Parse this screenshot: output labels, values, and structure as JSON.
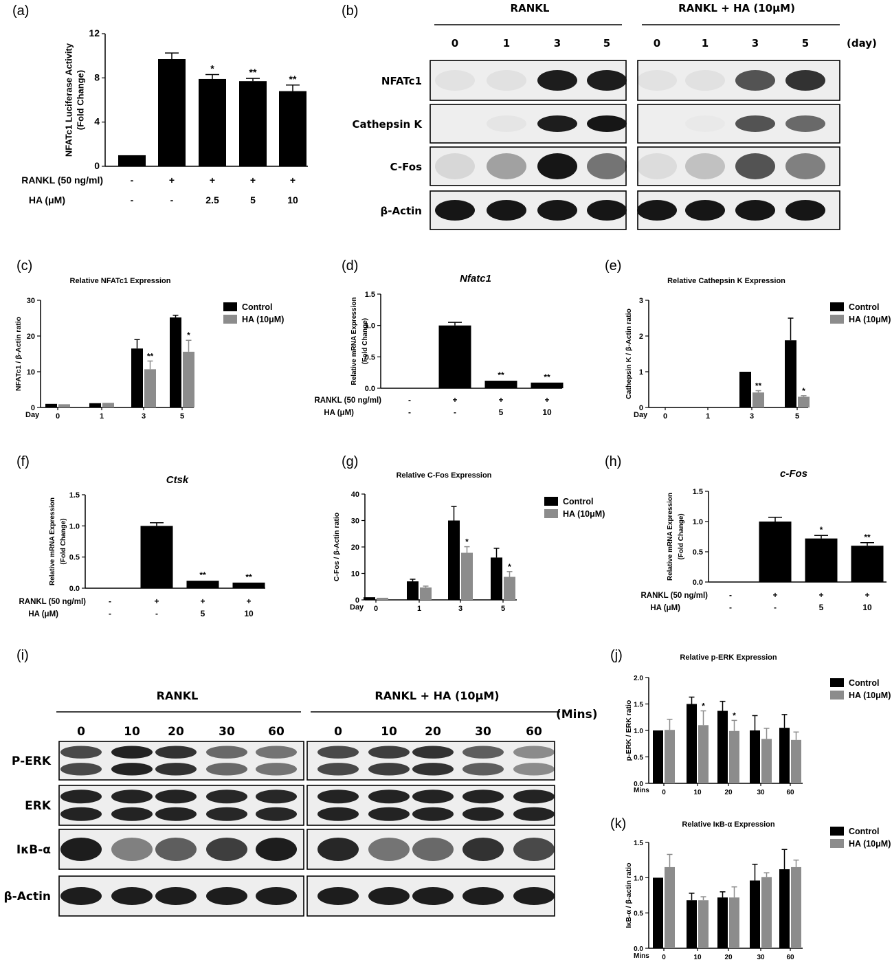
{
  "panel_labels": {
    "a": "(a)",
    "b": "(b)",
    "c": "(c)",
    "d": "(d)",
    "e": "(e)",
    "f": "(f)",
    "g": "(g)",
    "h": "(h)",
    "i": "(i)",
    "j": "(j)",
    "k": "(k)"
  },
  "legend": {
    "control": "Control",
    "ha": "HA (10μM)"
  },
  "colors": {
    "control": "#000000",
    "ha": "#8c8c8c",
    "blot_bg": "#eeeeee",
    "band": "#111111"
  },
  "blot_b": {
    "group1": "RANKL",
    "group2": "RANKL + HA (10μM)",
    "lanes": [
      "0",
      "1",
      "3",
      "5",
      "0",
      "1",
      "3",
      "5"
    ],
    "unit": "(day)",
    "rows": [
      "NFATc1",
      "Cathepsin K",
      "C-Fos",
      "β-Actin"
    ],
    "intensity": [
      [
        0.05,
        0.06,
        0.95,
        0.95,
        0.05,
        0.06,
        0.7,
        0.85
      ],
      [
        0.0,
        0.04,
        0.95,
        0.98,
        0.0,
        0.02,
        0.7,
        0.6
      ],
      [
        0.1,
        0.35,
        0.98,
        0.55,
        0.08,
        0.2,
        0.7,
        0.5
      ],
      [
        0.98,
        0.98,
        0.98,
        0.98,
        0.98,
        0.98,
        0.98,
        0.98
      ]
    ]
  },
  "blot_i": {
    "group1": "RANKL",
    "group2": "RANKL + HA (10μM)",
    "lanes": [
      "0",
      "10",
      "20",
      "30",
      "60",
      "0",
      "10",
      "20",
      "30",
      "60"
    ],
    "unit": "(Mins)",
    "rows": [
      "P-ERK",
      "ERK",
      "IκB-α",
      "β-Actin"
    ],
    "intensity": [
      [
        0.75,
        0.92,
        0.85,
        0.6,
        0.55,
        0.75,
        0.8,
        0.85,
        0.65,
        0.45
      ],
      [
        0.92,
        0.92,
        0.92,
        0.9,
        0.9,
        0.92,
        0.92,
        0.92,
        0.92,
        0.92
      ],
      [
        0.95,
        0.5,
        0.65,
        0.8,
        0.95,
        0.9,
        0.55,
        0.6,
        0.85,
        0.75
      ],
      [
        0.95,
        0.95,
        0.95,
        0.95,
        0.95,
        0.95,
        0.95,
        0.95,
        0.95,
        0.95
      ]
    ]
  },
  "chart_data": [
    {
      "id": "a",
      "type": "bar",
      "ylabel": "NFATc1 Luciferase Activity\n(Fold Change)",
      "ylim": [
        0,
        12
      ],
      "yticks": [
        0,
        4,
        8,
        12
      ],
      "values": [
        1.0,
        9.7,
        7.9,
        7.7,
        6.8
      ],
      "errors": [
        0,
        0.55,
        0.4,
        0.25,
        0.55
      ],
      "stars": [
        "",
        "",
        "*",
        "**",
        "**"
      ],
      "cond_rows": [
        {
          "label": "RANKL (50 ng/ml)",
          "values": [
            "-",
            "+",
            "+",
            "+",
            "+"
          ]
        },
        {
          "label": "HA (μM)",
          "values": [
            "-",
            "-",
            "2.5",
            "5",
            "10"
          ]
        }
      ]
    },
    {
      "id": "c",
      "type": "bar",
      "title": "Relative NFATc1 Expression",
      "ylabel": "NFATc1 / β-Actin ratio",
      "ylim": [
        0,
        30
      ],
      "yticks": [
        0,
        10,
        20,
        30
      ],
      "xlabel": "Day",
      "categories": [
        "0",
        "1",
        "3",
        "5"
      ],
      "series": [
        {
          "name": "Control",
          "values": [
            1.0,
            1.2,
            16.5,
            25.2
          ],
          "errors": [
            0,
            0,
            2.5,
            0.6
          ]
        },
        {
          "name": "HA (10μM)",
          "values": [
            0.9,
            1.3,
            10.7,
            15.6
          ],
          "errors": [
            0,
            0,
            2.3,
            3.2
          ]
        }
      ],
      "stars": [
        [
          "",
          ""
        ],
        [
          "",
          ""
        ],
        [
          "",
          "**"
        ],
        [
          "",
          "*"
        ]
      ]
    },
    {
      "id": "d",
      "type": "bar",
      "title": "Nfatc1",
      "ylabel": "Relative mRNA Expression\n(Fold Change)",
      "ylim": [
        0,
        1.5
      ],
      "yticks": [
        "0.0",
        "0.5",
        "1.0",
        "1.5"
      ],
      "values": [
        0.0,
        1.0,
        0.12,
        0.09
      ],
      "errors": [
        0,
        0.05,
        0.0,
        0.0
      ],
      "stars": [
        "",
        "",
        "**",
        "**"
      ],
      "cond_rows": [
        {
          "label": "RANKL (50 ng/ml)",
          "values": [
            "-",
            "+",
            "+",
            "+"
          ]
        },
        {
          "label": "HA (μM)",
          "values": [
            "-",
            "-",
            "5",
            "10"
          ]
        }
      ]
    },
    {
      "id": "e",
      "type": "bar",
      "title": "Relative Cathepsin K Expression",
      "ylabel": "Cathepsin K / β-Actin ratio",
      "ylim": [
        0,
        3
      ],
      "yticks": [
        0,
        1,
        2,
        3
      ],
      "xlabel": "Day",
      "categories": [
        "0",
        "1",
        "3",
        "5"
      ],
      "series": [
        {
          "name": "Control",
          "values": [
            0,
            0,
            1.0,
            1.88
          ],
          "errors": [
            0,
            0,
            0,
            0.62
          ]
        },
        {
          "name": "HA (10μM)",
          "values": [
            0,
            0,
            0.42,
            0.3
          ],
          "errors": [
            0,
            0,
            0.05,
            0.03
          ]
        }
      ],
      "stars": [
        [
          "",
          ""
        ],
        [
          "",
          ""
        ],
        [
          "",
          "**"
        ],
        [
          "",
          "*"
        ]
      ]
    },
    {
      "id": "f",
      "type": "bar",
      "title": "Ctsk",
      "ylabel": "Relative mRNA Expression\n(Fold Change)",
      "ylim": [
        0,
        1.5
      ],
      "yticks": [
        "0.0",
        "0.5",
        "1.0",
        "1.5"
      ],
      "values": [
        0.0,
        1.0,
        0.12,
        0.09
      ],
      "errors": [
        0,
        0.05,
        0.0,
        0.0
      ],
      "stars": [
        "",
        "",
        "**",
        "**"
      ],
      "cond_rows": [
        {
          "label": "RANKL (50 ng/ml)",
          "values": [
            "-",
            "+",
            "+",
            "+"
          ]
        },
        {
          "label": "HA (μM)",
          "values": [
            "-",
            "-",
            "5",
            "10"
          ]
        }
      ]
    },
    {
      "id": "g",
      "type": "bar",
      "title": "Relative C-Fos Expression",
      "ylabel": "C-Fos / β-Actin ratio",
      "ylim": [
        0,
        40
      ],
      "yticks": [
        0,
        10,
        20,
        30,
        40
      ],
      "xlabel": "Day",
      "categories": [
        "0",
        "1",
        "3",
        "5"
      ],
      "series": [
        {
          "name": "Control",
          "values": [
            1.0,
            7.0,
            30.0,
            16.0
          ],
          "errors": [
            0,
            0.8,
            5.3,
            3.5
          ]
        },
        {
          "name": "HA (10μM)",
          "values": [
            0.8,
            4.7,
            17.8,
            8.7
          ],
          "errors": [
            0,
            0.5,
            2.3,
            2.0
          ]
        }
      ],
      "stars": [
        [
          "",
          ""
        ],
        [
          "",
          ""
        ],
        [
          "",
          "*"
        ],
        [
          "",
          "*"
        ]
      ]
    },
    {
      "id": "h",
      "type": "bar",
      "title": "c-Fos",
      "ylabel": "Relative mRNA Expression\n(Fold Change)",
      "ylim": [
        0,
        1.5
      ],
      "yticks": [
        "0.0",
        "0.5",
        "1.0",
        "1.5"
      ],
      "values": [
        0.0,
        1.0,
        0.72,
        0.6
      ],
      "errors": [
        0,
        0.07,
        0.05,
        0.05
      ],
      "stars": [
        "",
        "",
        "*",
        "**"
      ],
      "cond_rows": [
        {
          "label": "RANKL (50 ng/ml)",
          "values": [
            "-",
            "+",
            "+",
            "+"
          ]
        },
        {
          "label": "HA (μM)",
          "values": [
            "-",
            "-",
            "5",
            "10"
          ]
        }
      ]
    },
    {
      "id": "j",
      "type": "bar",
      "title": "Relative p-ERK Expression",
      "ylabel": "p-ERK / ERK ratio",
      "ylim": [
        0,
        2
      ],
      "yticks": [
        "0.0",
        "0.5",
        "1.0",
        "1.5",
        "2.0"
      ],
      "xlabel": "Mins",
      "categories": [
        "0",
        "10",
        "20",
        "30",
        "60"
      ],
      "series": [
        {
          "name": "Control",
          "values": [
            1.0,
            1.5,
            1.37,
            1.0,
            1.05
          ],
          "errors": [
            0,
            0.13,
            0.18,
            0.28,
            0.25
          ]
        },
        {
          "name": "HA (10μM)",
          "values": [
            1.01,
            1.1,
            0.99,
            0.84,
            0.82
          ],
          "errors": [
            0.2,
            0.27,
            0.2,
            0.2,
            0.15
          ]
        }
      ],
      "stars": [
        [
          "",
          ""
        ],
        [
          "",
          "*"
        ],
        [
          "",
          "*"
        ],
        [
          "",
          ""
        ],
        [
          "",
          ""
        ]
      ]
    },
    {
      "id": "k",
      "type": "bar",
      "title": "Relative IκB-α Expression",
      "ylabel": "IκB-α / β-actin ratio",
      "ylim": [
        0,
        1.5
      ],
      "yticks": [
        "0.0",
        "0.5",
        "1.0",
        "1.5"
      ],
      "xlabel": "Mins",
      "categories": [
        "0",
        "10",
        "20",
        "30",
        "60"
      ],
      "series": [
        {
          "name": "Control",
          "values": [
            1.0,
            0.68,
            0.72,
            0.96,
            1.12
          ],
          "errors": [
            0,
            0.1,
            0.08,
            0.23,
            0.28
          ]
        },
        {
          "name": "HA (10μM)",
          "values": [
            1.15,
            0.68,
            0.72,
            1.01,
            1.15
          ],
          "errors": [
            0.18,
            0.05,
            0.15,
            0.06,
            0.1
          ]
        }
      ],
      "stars": [
        [
          "",
          ""
        ],
        [
          "",
          ""
        ],
        [
          "",
          ""
        ],
        [
          "",
          ""
        ],
        [
          "",
          ""
        ]
      ]
    }
  ]
}
